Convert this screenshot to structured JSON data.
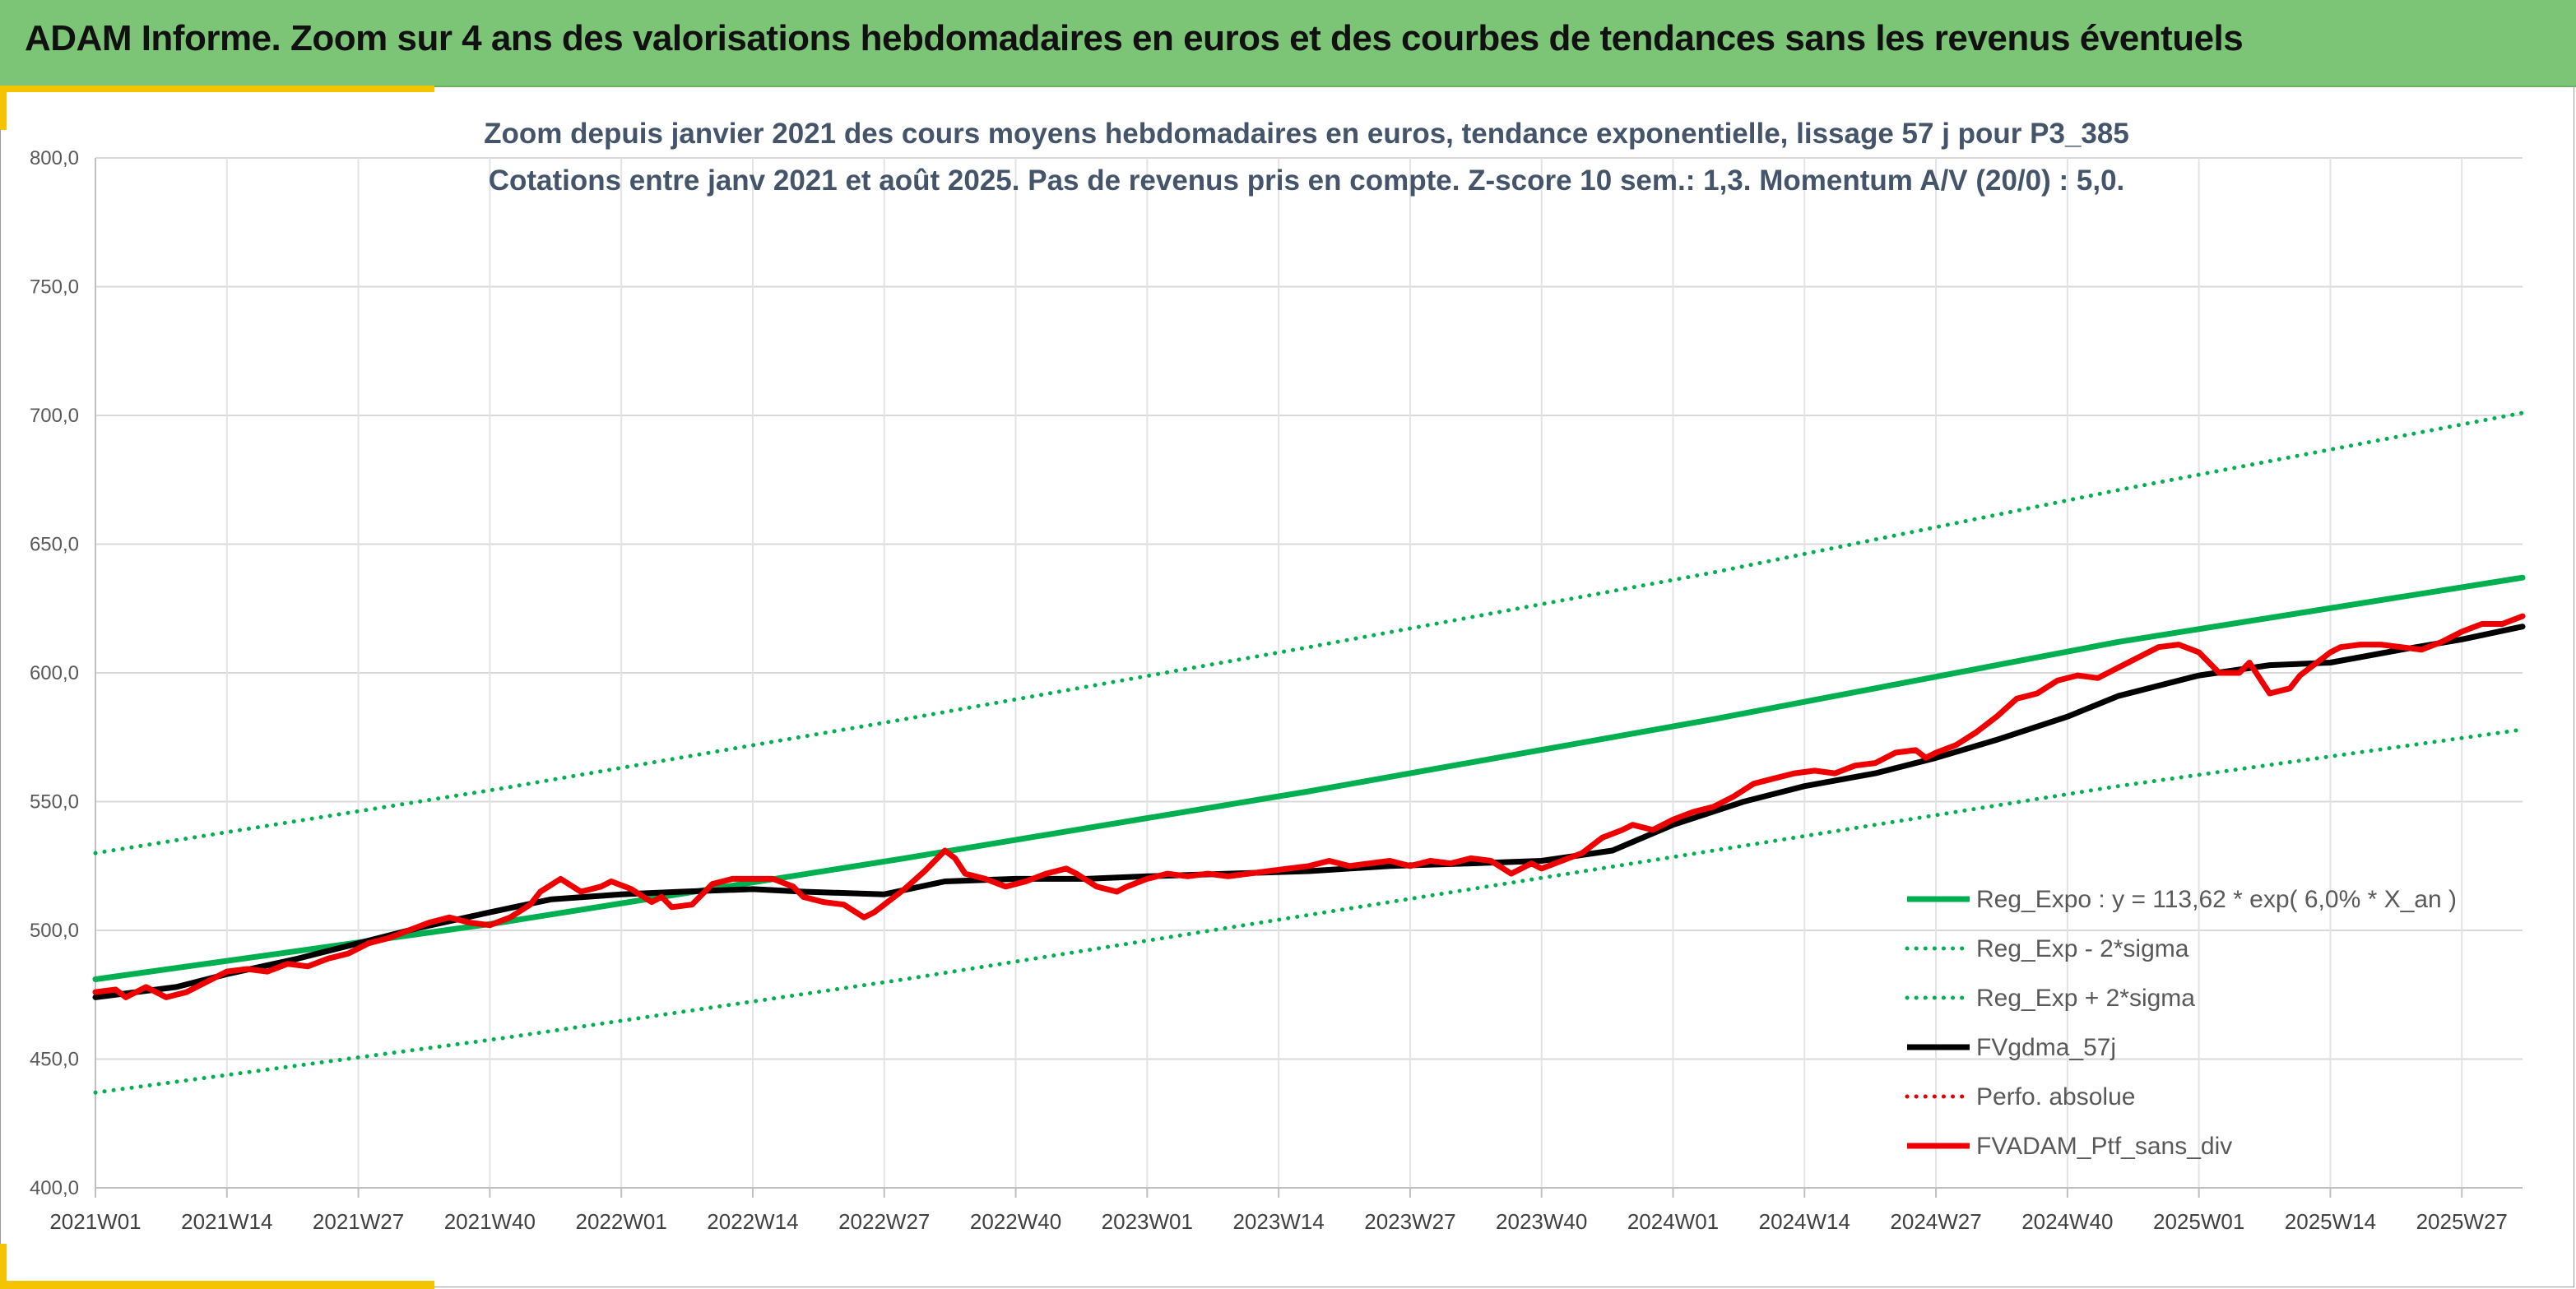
{
  "banner": {
    "title": "ADAM Informe. Zoom sur 4 ans des valorisations hebdomadaires en euros et des courbes de tendances sans les revenus éventuels"
  },
  "chart_data": {
    "type": "line",
    "title": "Zoom depuis janvier 2021 des cours moyens hebdomadaires en euros, tendance exponentielle, lissage 57 j pour P3_385",
    "subtitle": "Cotations entre janv 2021 et août 2025. Pas de revenus pris en compte. Z-score 10 sem.: 1,3. Momentum A/V (20/0) : 5,0.",
    "xlabel": "",
    "ylabel": "",
    "ylim": [
      400,
      800
    ],
    "y_ticks": [
      "400,0",
      "450,0",
      "500,0",
      "550,0",
      "600,0",
      "650,0",
      "700,0",
      "750,0",
      "800,0"
    ],
    "y_tick_values": [
      400,
      450,
      500,
      550,
      600,
      650,
      700,
      750,
      800
    ],
    "x_range_weeks": [
      0,
      240
    ],
    "x_ticks": [
      "2021W01",
      "2021W14",
      "2021W27",
      "2021W40",
      "2022W01",
      "2022W14",
      "2022W27",
      "2022W40",
      "2023W01",
      "2023W14",
      "2023W27",
      "2023W40",
      "2024W01",
      "2024W14",
      "2024W27",
      "2024W40",
      "2025W01",
      "2025W14",
      "2025W27"
    ],
    "x_tick_weeks": [
      0,
      13,
      26,
      39,
      52,
      65,
      78,
      91,
      104,
      117,
      130,
      143,
      156,
      169,
      182,
      195,
      208,
      221,
      234
    ],
    "grid": true,
    "legend_position": "bottom-right",
    "series": [
      {
        "name": "Reg_Expo : y = 113,62 * exp( 6,0% *  X_an )",
        "color": "#00b050",
        "style": "solid",
        "width": 7,
        "x": [
          0,
          40,
          80,
          120,
          160,
          200,
          240
        ],
        "y": [
          481,
          503,
          528,
          554,
          582,
          612,
          637
        ]
      },
      {
        "name": "Reg_Exp - 2*sigma",
        "color": "#00b050",
        "style": "dotted",
        "width": 5,
        "x": [
          0,
          40,
          80,
          120,
          160,
          200,
          240
        ],
        "y": [
          437,
          458,
          481,
          506,
          531,
          556,
          578
        ]
      },
      {
        "name": "Reg_Exp + 2*sigma",
        "color": "#00b050",
        "style": "dotted",
        "width": 5,
        "x": [
          0,
          40,
          80,
          120,
          160,
          200,
          240
        ],
        "y": [
          530,
          555,
          582,
          610,
          639,
          671,
          701
        ]
      },
      {
        "name": "FVgdma_57j",
        "color": "#000000",
        "style": "solid",
        "width": 7,
        "x": [
          0,
          8,
          13,
          20,
          26,
          32,
          39,
          45,
          52,
          58,
          65,
          70,
          78,
          84,
          91,
          98,
          104,
          112,
          120,
          128,
          136,
          143,
          150,
          156,
          163,
          169,
          176,
          182,
          188,
          195,
          200,
          208,
          215,
          221,
          228,
          234,
          240
        ],
        "y": [
          474,
          478,
          483,
          489,
          495,
          501,
          507,
          512,
          514,
          515,
          516,
          515,
          514,
          519,
          520,
          520,
          521,
          522,
          523,
          525,
          526,
          527,
          531,
          541,
          550,
          556,
          561,
          567,
          574,
          583,
          591,
          599,
          603,
          604,
          609,
          613,
          618
        ]
      },
      {
        "name": "Perfo. absolue",
        "color": "#e00000",
        "style": "dotted",
        "width": 5,
        "x": [],
        "y": []
      },
      {
        "name": "FVADAM_Ptf_sans_div",
        "color": "#ee0000",
        "style": "solid",
        "width": 7,
        "x": [
          0,
          2,
          3,
          5,
          6,
          7,
          9,
          11,
          13,
          15,
          17,
          19,
          21,
          23,
          25,
          27,
          29,
          31,
          33,
          35,
          37,
          39,
          41,
          43,
          44,
          46,
          48,
          50,
          51,
          53,
          55,
          56,
          57,
          59,
          61,
          63,
          65,
          67,
          69,
          70,
          72,
          74,
          76,
          77,
          78,
          80,
          82,
          84,
          85,
          86,
          88,
          90,
          92,
          94,
          96,
          97,
          99,
          101,
          102,
          104,
          106,
          108,
          110,
          112,
          114,
          116,
          118,
          120,
          122,
          124,
          126,
          128,
          130,
          132,
          134,
          136,
          138,
          140,
          142,
          143,
          145,
          147,
          149,
          151,
          152,
          154,
          156,
          158,
          160,
          162,
          164,
          166,
          168,
          170,
          172,
          174,
          176,
          178,
          180,
          181,
          182,
          184,
          186,
          188,
          190,
          192,
          194,
          196,
          198,
          200,
          202,
          204,
          206,
          208,
          210,
          212,
          213,
          214,
          215,
          217,
          218,
          219,
          220,
          221,
          222,
          224,
          226,
          228,
          230,
          232,
          234,
          236,
          238,
          240
        ],
        "y": [
          476,
          477,
          474,
          478,
          476,
          474,
          476,
          480,
          484,
          485,
          484,
          487,
          486,
          489,
          491,
          495,
          497,
          500,
          503,
          505,
          503,
          502,
          505,
          510,
          515,
          520,
          515,
          517,
          519,
          516,
          511,
          513,
          509,
          510,
          518,
          520,
          520,
          520,
          517,
          513,
          511,
          510,
          505,
          507,
          510,
          516,
          523,
          531,
          528,
          522,
          520,
          517,
          519,
          522,
          524,
          522,
          517,
          515,
          517,
          520,
          522,
          521,
          522,
          521,
          522,
          523,
          524,
          525,
          527,
          525,
          526,
          527,
          525,
          527,
          526,
          528,
          527,
          522,
          526,
          524,
          527,
          530,
          536,
          539,
          541,
          539,
          543,
          546,
          548,
          552,
          557,
          559,
          561,
          562,
          561,
          564,
          565,
          569,
          570,
          567,
          569,
          572,
          577,
          583,
          590,
          592,
          597,
          599,
          598,
          602,
          606,
          610,
          611,
          608,
          600,
          600,
          604,
          598,
          592,
          594,
          599,
          602,
          605,
          608,
          610,
          611,
          611,
          610,
          609,
          612,
          616,
          619,
          619,
          622
        ]
      }
    ]
  }
}
